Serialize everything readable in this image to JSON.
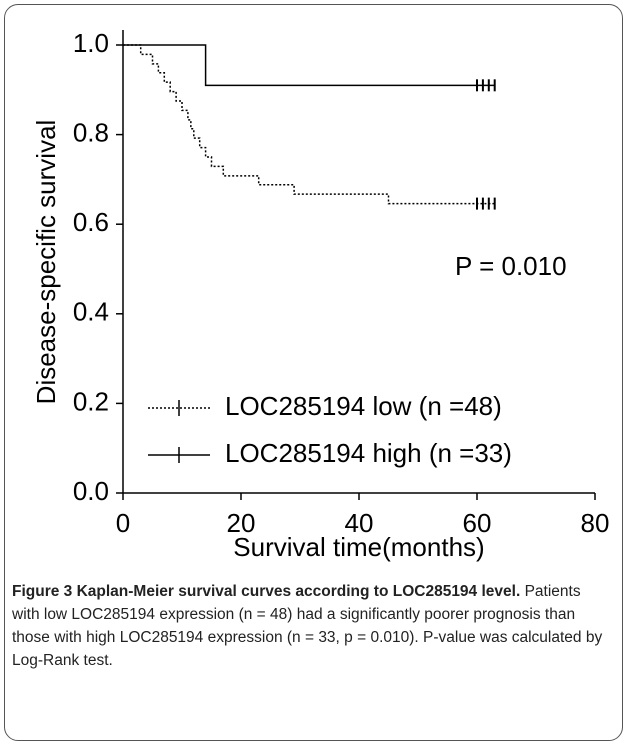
{
  "chart_data": {
    "type": "survival",
    "ylabel": "Disease-specific survival",
    "xlabel": "Survival time(months)",
    "annotation": "P = 0.010",
    "xlim": [
      0,
      80
    ],
    "xticks": [
      0,
      20,
      40,
      60,
      80
    ],
    "ylim": [
      0,
      1
    ],
    "yticks": [
      {
        "value": 0,
        "label": "0.0"
      },
      0.2,
      0.4,
      0.6,
      0.8,
      {
        "value": 1,
        "label": "1.0"
      }
    ],
    "series": [
      {
        "name": "LOC285194  low (n =48)",
        "color": "#000000",
        "dash": "dotted",
        "x": [
          0,
          3,
          5,
          6,
          7,
          8,
          9,
          10,
          11,
          11.5,
          12,
          13,
          14,
          15,
          17,
          23,
          29,
          45,
          63
        ],
        "values": [
          1.0,
          0.979,
          0.958,
          0.938,
          0.917,
          0.896,
          0.875,
          0.854,
          0.833,
          0.813,
          0.792,
          0.771,
          0.75,
          0.729,
          0.708,
          0.688,
          0.667,
          0.646,
          0.646
        ],
        "censored": [
          60,
          61,
          62,
          63
        ]
      },
      {
        "name": "LOC285194  high (n =33)",
        "color": "#000000",
        "dash": "solid",
        "x": [
          0,
          14,
          63
        ],
        "values": [
          1.0,
          0.91,
          0.91
        ],
        "censored": [
          60,
          61,
          62,
          63
        ]
      }
    ]
  },
  "caption": {
    "title": "Figure 3 Kaplan-Meier survival curves according to LOC285194 level.",
    "text": " Patients with low LOC285194 expression (n = 48) had a significantly poorer prognosis than those with high LOC285194 expression (n = 33, p = 0.010). P-value was calculated by Log-Rank test."
  }
}
